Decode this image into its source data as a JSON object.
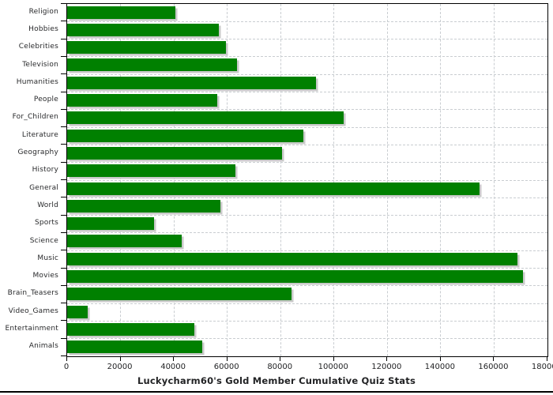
{
  "chart_data": {
    "type": "bar",
    "orientation": "horizontal",
    "title": "Luckycharm60's Gold Member Cumulative Quiz Stats",
    "categories": [
      "Religion",
      "Hobbies",
      "Celebrities",
      "Television",
      "Humanities",
      "People",
      "For_Children",
      "Literature",
      "Geography",
      "History",
      "General",
      "World",
      "Sports",
      "Science",
      "Music",
      "Movies",
      "Brain_Teasers",
      "Video_Games",
      "Entertainment",
      "Animals"
    ],
    "values": [
      40700,
      56800,
      59600,
      63700,
      93300,
      56300,
      103700,
      88400,
      80500,
      63000,
      154400,
      57400,
      32500,
      43000,
      168700,
      170700,
      84200,
      7600,
      47800,
      50500
    ],
    "xlabel": "",
    "ylabel": "",
    "xlim": [
      0,
      180000
    ],
    "x_tick_labels": [
      "0",
      "20000",
      "40000",
      "60000",
      "80000",
      "100000",
      "120000",
      "140000",
      "160000",
      "180000"
    ],
    "x_tick_values": [
      0,
      20000,
      40000,
      60000,
      80000,
      100000,
      120000,
      140000,
      160000,
      180000
    ],
    "grid": "dashed-both-axes",
    "legend": "none",
    "colors": {
      "bar": "#008000",
      "bar_shadow": "#c9c9c9",
      "gridline": "#c9cdd1",
      "axis_frame": "#000000",
      "text": "#28292b"
    }
  }
}
